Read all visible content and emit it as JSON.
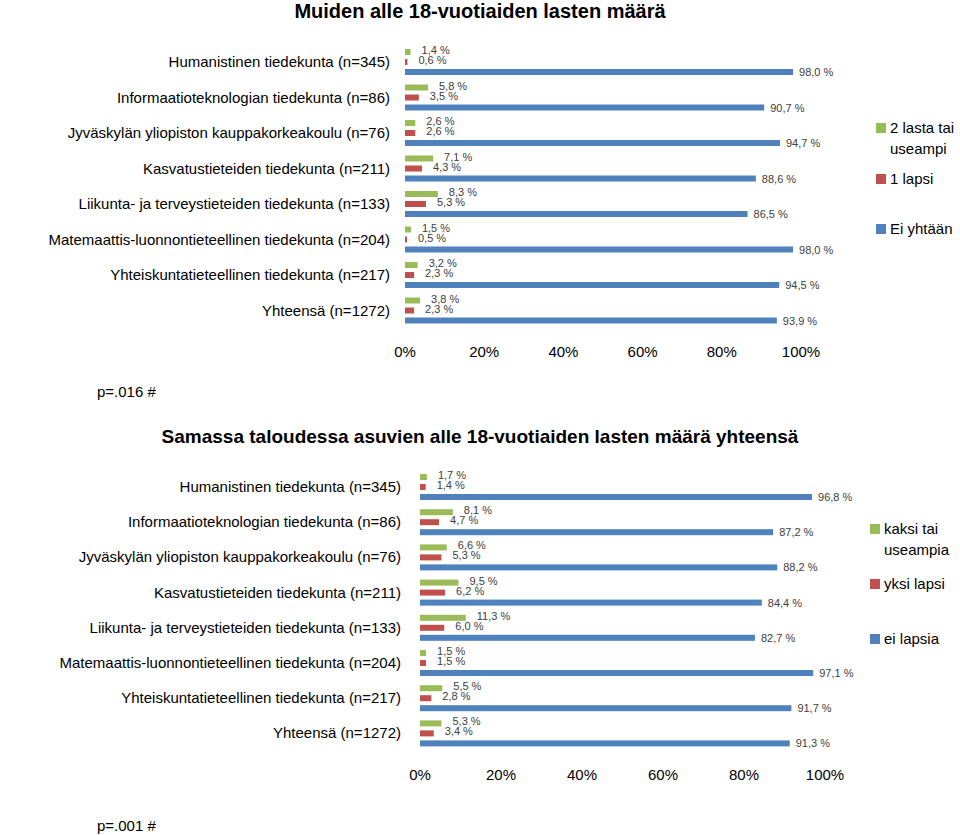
{
  "chart_data": [
    {
      "type": "bar",
      "title": "Muiden alle 18-vuotiaiden lasten määrä",
      "orientation": "horizontal",
      "data_labels": true,
      "legend": "right",
      "grid": false,
      "annotation": "p=.016 #",
      "categories": [
        "Humanistinen tiedekunta (n=345)",
        "Informaatioteknologian tiedekunta (n=86)",
        "Jyväskylän yliopiston kauppakorkeakoulu (n=76)",
        "Kasvatustieteiden tiedekunta (n=211)",
        "Liikunta- ja terveystieteiden tiedekunta (n=133)",
        "Matemaattis-luonnontieteellinen tiedekunta (n=204)",
        "Yhteiskuntatieteellinen tiedekunta (n=217)",
        "Yhteensä (n=1272)"
      ],
      "xlim": [
        0,
        100
      ],
      "xticks": [
        {
          "value": 0,
          "label": "0%"
        },
        {
          "value": 20,
          "label": "20%"
        },
        {
          "value": 40,
          "label": "40%"
        },
        {
          "value": 60,
          "label": "60%"
        },
        {
          "value": 80,
          "label": "80%"
        },
        {
          "value": 100,
          "label": "100%"
        }
      ],
      "series": [
        {
          "name": "2 lasta tai useampi",
          "color": "#9bbb59",
          "values": [
            1.4,
            5.8,
            2.6,
            7.1,
            8.3,
            1.5,
            3.2,
            3.8
          ],
          "value_labels": [
            "1,4 %",
            "5,8 %",
            "2,6 %",
            "7,1 %",
            "8,3 %",
            "1,5 %",
            "3,2 %",
            "3,8 %"
          ]
        },
        {
          "name": "1 lapsi",
          "color": "#c0504d",
          "values": [
            0.6,
            3.5,
            2.6,
            4.3,
            5.3,
            0.5,
            2.3,
            2.3
          ],
          "value_labels": [
            "0,6 %",
            "3,5 %",
            "2,6 %",
            "4,3 %",
            "5,3 %",
            "0,5 %",
            "2,3 %",
            "2,3 %"
          ]
        },
        {
          "name": "Ei yhtään",
          "color": "#4f81bd",
          "values": [
            98.0,
            90.7,
            94.7,
            88.6,
            86.5,
            98.0,
            94.5,
            93.9
          ],
          "value_labels": [
            "98,0 %",
            "90,7 %",
            "94,7 %",
            "88,6 %",
            "86,5 %",
            "98,0 %",
            "94,5 %",
            "93,9 %"
          ]
        }
      ]
    },
    {
      "type": "bar",
      "title": "Samassa taloudessa asuvien alle 18-vuotiaiden lasten määrä yhteensä",
      "orientation": "horizontal",
      "data_labels": true,
      "legend": "right",
      "grid": false,
      "annotation": "p=.001 #",
      "categories": [
        "Humanistinen tiedekunta (n=345)",
        "Informaatioteknologian tiedekunta (n=86)",
        "Jyväskylän yliopiston kauppakorkeakoulu (n=76)",
        "Kasvatustieteiden tiedekunta (n=211)",
        "Liikunta- ja terveystieteiden tiedekunta (n=133)",
        "Matemaattis-luonnontieteellinen tiedekunta (n=204)",
        "Yhteiskuntatieteellinen tiedekunta (n=217)",
        "Yhteensä (n=1272)"
      ],
      "xlim": [
        0,
        100
      ],
      "xticks": [
        {
          "value": 0,
          "label": "0%"
        },
        {
          "value": 20,
          "label": "20%"
        },
        {
          "value": 40,
          "label": "40%"
        },
        {
          "value": 60,
          "label": "60%"
        },
        {
          "value": 80,
          "label": "80%"
        },
        {
          "value": 100,
          "label": "100%"
        }
      ],
      "series": [
        {
          "name": "kaksi tai useampia",
          "color": "#9bbb59",
          "values": [
            1.7,
            8.1,
            6.6,
            9.5,
            11.3,
            1.5,
            5.5,
            5.3
          ],
          "value_labels": [
            "1,7 %",
            "8,1 %",
            "6,6 %",
            "9,5 %",
            "11,3 %",
            "1,5 %",
            "5,5 %",
            "5,3 %"
          ]
        },
        {
          "name": "yksi lapsi",
          "color": "#c0504d",
          "values": [
            1.4,
            4.7,
            5.3,
            6.2,
            6.0,
            1.5,
            2.8,
            3.4
          ],
          "value_labels": [
            "1,4 %",
            "4,7 %",
            "5,3 %",
            "6,2 %",
            "6,0 %",
            "1,5 %",
            "2,8 %",
            "3,4 %"
          ]
        },
        {
          "name": "ei lapsia",
          "color": "#4f81bd",
          "values": [
            96.8,
            87.2,
            88.2,
            84.4,
            82.7,
            97.1,
            91.7,
            91.3
          ],
          "value_labels": [
            "96,8 %",
            "87,2 %",
            "88,2 %",
            "84,4 %",
            "82,7 %",
            "97,1 %",
            "91,7 %",
            "91,3 %"
          ]
        }
      ]
    }
  ]
}
